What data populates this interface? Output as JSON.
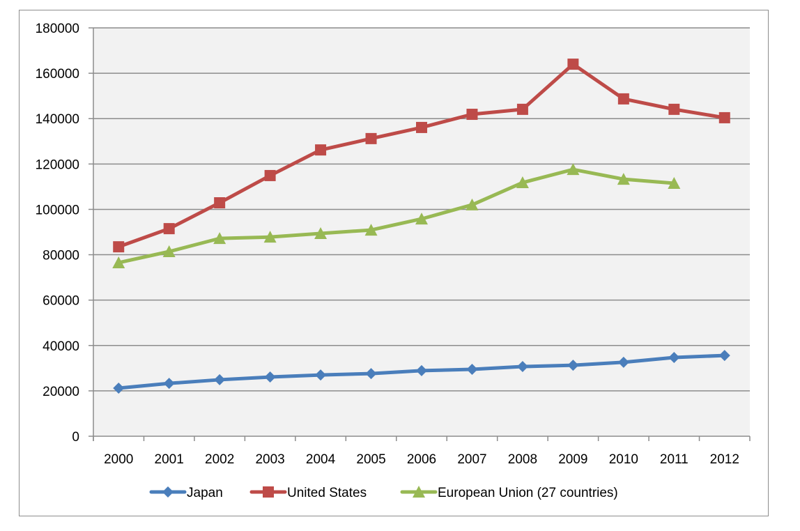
{
  "chart_data": {
    "type": "line",
    "title": "",
    "xlabel": "",
    "ylabel": "",
    "categories": [
      "2000",
      "2001",
      "2002",
      "2003",
      "2004",
      "2005",
      "2006",
      "2007",
      "2008",
      "2009",
      "2010",
      "2011",
      "2012"
    ],
    "ylim": [
      0,
      180000
    ],
    "yticks": [
      "0",
      "20000",
      "40000",
      "60000",
      "80000",
      "100000",
      "120000",
      "140000",
      "160000",
      "180000"
    ],
    "grid": true,
    "legend_position": "bottom",
    "series": [
      {
        "name": "Japan",
        "color": "#4a7ebb",
        "marker": "diamond",
        "values": [
          21200,
          23300,
          24900,
          26100,
          27000,
          27600,
          28900,
          29500,
          30700,
          31300,
          32600,
          34700,
          35600
        ]
      },
      {
        "name": "United States",
        "color": "#be4b48",
        "marker": "square",
        "values": [
          83500,
          91500,
          102900,
          114900,
          126200,
          131200,
          136100,
          141900,
          144100,
          164000,
          148700,
          144100,
          140400
        ]
      },
      {
        "name": "European Union (27 countries)",
        "color": "#98b954",
        "marker": "triangle",
        "values": [
          76500,
          81400,
          87200,
          87800,
          89400,
          90900,
          95800,
          102000,
          111800,
          117600,
          113300,
          111500,
          null
        ]
      }
    ],
    "plot_background": "#f2f2f2",
    "gridline_color": "#8c8c8c"
  }
}
